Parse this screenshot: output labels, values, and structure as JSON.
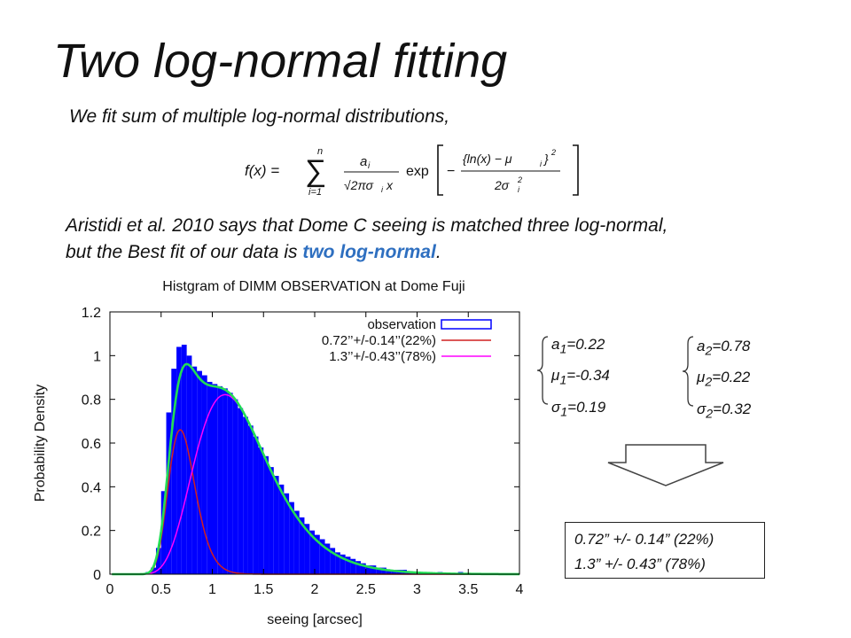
{
  "slide": {
    "title": "Two log-normal fitting",
    "intro": "We fit sum of multiple log-normal distributions,",
    "para_line1": "Aristidi et al. 2010 says that Dome C seeing is matched three log-normal,",
    "para_line2_pre": "but the Best fit of our data is ",
    "para_highlight": "two log-normal",
    "para_line2_post": ".",
    "highlight_color": "#2e6fc0"
  },
  "formula": {
    "lhs": "f(x) =",
    "sum_top": "n",
    "sum_bottom": "i=1",
    "frac_num": "a",
    "frac_den": "√2πσ",
    "exp": "exp",
    "inner_num": "{ln(x) − μ",
    "inner_den": "2σ"
  },
  "params": {
    "comp1": [
      {
        "sym": "a",
        "sub": "1",
        "val": "=0.22"
      },
      {
        "sym": "μ",
        "sub": "1",
        "val": "=-0.34"
      },
      {
        "sym": "σ",
        "sub": "1",
        "val": "=0.19"
      }
    ],
    "comp2": [
      {
        "sym": "a",
        "sub": "2",
        "val": "=0.78"
      },
      {
        "sym": "μ",
        "sub": "2",
        "val": "=0.22"
      },
      {
        "sym": "σ",
        "sub": "2",
        "val": "=0.32"
      }
    ]
  },
  "summary": {
    "line1": "0.72” +/- 0.14” (22%)",
    "line2": "1.3” +/- 0.43” (78%)"
  },
  "chart_data": {
    "type": "bar",
    "title": "Histgram of DIMM OBSERVATION at Dome Fuji",
    "xlabel": "seeing [arcsec]",
    "ylabel": "Probability Density",
    "xlim": [
      0,
      4
    ],
    "ylim": [
      0,
      1.2
    ],
    "xticks": [
      "0",
      "0.5",
      "1",
      "1.5",
      "2",
      "2.5",
      "3",
      "3.5",
      "4"
    ],
    "yticks": [
      "0",
      "0.2",
      "0.4",
      "0.6",
      "0.8",
      "1",
      "1.2"
    ],
    "legend_position": "top-right",
    "colors": {
      "observation": "#0000ff",
      "component1": "#d02020",
      "component2": "#ff00ff",
      "total": "#22dd55"
    },
    "series": [
      {
        "name": "observation",
        "style": "histogram"
      },
      {
        "name": "0.72’’+/-0.14’’(22%)",
        "style": "line"
      },
      {
        "name": "1.3’’+/-0.43’’(78%)",
        "style": "line"
      }
    ],
    "bin_width": 0.05,
    "histogram": {
      "x": [
        0.3,
        0.35,
        0.4,
        0.45,
        0.5,
        0.55,
        0.6,
        0.65,
        0.7,
        0.75,
        0.8,
        0.85,
        0.9,
        0.95,
        1.0,
        1.05,
        1.1,
        1.15,
        1.2,
        1.25,
        1.3,
        1.35,
        1.4,
        1.45,
        1.5,
        1.55,
        1.6,
        1.65,
        1.7,
        1.75,
        1.8,
        1.85,
        1.9,
        1.95,
        2.0,
        2.05,
        2.1,
        2.15,
        2.2,
        2.25,
        2.3,
        2.35,
        2.4,
        2.45,
        2.5,
        2.55,
        2.6,
        2.65,
        2.7,
        2.75,
        2.8,
        2.85,
        2.9,
        2.95,
        3.0,
        3.1,
        3.2,
        3.3,
        3.4,
        3.5,
        3.6,
        3.7,
        3.8,
        3.9
      ],
      "y": [
        0.0,
        0.01,
        0.03,
        0.12,
        0.38,
        0.74,
        0.94,
        1.04,
        1.05,
        1.0,
        0.95,
        0.93,
        0.91,
        0.88,
        0.87,
        0.86,
        0.85,
        0.83,
        0.8,
        0.76,
        0.72,
        0.68,
        0.63,
        0.58,
        0.54,
        0.49,
        0.45,
        0.41,
        0.37,
        0.33,
        0.29,
        0.26,
        0.23,
        0.2,
        0.18,
        0.16,
        0.14,
        0.12,
        0.1,
        0.09,
        0.08,
        0.07,
        0.06,
        0.05,
        0.04,
        0.04,
        0.03,
        0.03,
        0.02,
        0.02,
        0.02,
        0.02,
        0.01,
        0.01,
        0.01,
        0.01,
        0.01,
        0.0,
        0.01,
        0.0,
        0.0,
        0.0,
        0.0,
        0.0
      ]
    },
    "components": [
      {
        "a": 0.22,
        "mu": -0.34,
        "sigma": 0.19
      },
      {
        "a": 0.78,
        "mu": 0.22,
        "sigma": 0.32
      }
    ]
  }
}
